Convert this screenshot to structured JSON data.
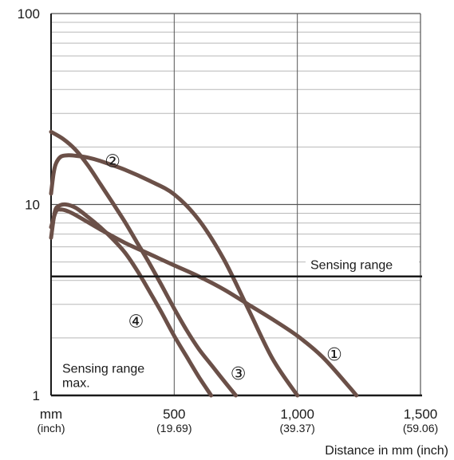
{
  "chart_data": {
    "type": "line",
    "y_scale": "log",
    "ylim": [
      1,
      100
    ],
    "xlim": [
      0,
      1500
    ],
    "grid": true,
    "x_ticks": [
      {
        "value": 0,
        "label": "mm",
        "sub": "(inch)"
      },
      {
        "value": 500,
        "label": "500",
        "sub": "(19.69)"
      },
      {
        "value": 1000,
        "label": "1,000",
        "sub": "(39.37)"
      },
      {
        "value": 1500,
        "label": "1,500",
        "sub": "(59.06)"
      }
    ],
    "y_ticks": [
      {
        "value": 1,
        "label": "1"
      },
      {
        "value": 10,
        "label": "10"
      },
      {
        "value": 100,
        "label": "100"
      }
    ],
    "xlabel": "Distance in mm (inch)",
    "ylabel": "",
    "line_color": "#6b5048",
    "sensing_range": {
      "label": "Sensing range",
      "value": 4.2
    },
    "annotations": [
      {
        "text": "Sensing range",
        "x": 5,
        "y": 1.38
      },
      {
        "text": "max.",
        "x": 5,
        "y": 1.16
      }
    ],
    "series": [
      {
        "label": "①",
        "x": [
          0,
          20,
          40,
          60,
          100,
          200,
          300,
          400,
          500,
          600,
          700,
          800,
          900,
          1000,
          1100,
          1200,
          1240
        ],
        "y": [
          7.6,
          9.2,
          9.4,
          9.3,
          8.8,
          7.4,
          6.3,
          5.5,
          4.8,
          4.2,
          3.6,
          3.0,
          2.5,
          2.05,
          1.6,
          1.15,
          1.0
        ]
      },
      {
        "label": "②",
        "x": [
          0,
          10,
          20,
          40,
          70,
          100,
          150,
          200,
          300,
          400,
          500,
          600,
          700,
          800,
          900,
          1000
        ],
        "y": [
          11.4,
          14.5,
          16.4,
          17.8,
          18.1,
          18.0,
          17.6,
          16.9,
          15.2,
          13.3,
          11.3,
          8.3,
          5.2,
          2.85,
          1.55,
          1.0
        ]
      },
      {
        "label": "③",
        "x": [
          0,
          50,
          100,
          150,
          200,
          250,
          300,
          350,
          400,
          450,
          500,
          550,
          600,
          650,
          700,
          750
        ],
        "y": [
          24.0,
          22.0,
          19.3,
          16.0,
          12.8,
          10.2,
          8.1,
          6.3,
          4.9,
          3.75,
          2.85,
          2.2,
          1.75,
          1.45,
          1.2,
          1.0
        ]
      },
      {
        "label": "④",
        "x": [
          0,
          15,
          30,
          60,
          100,
          150,
          200,
          250,
          300,
          350,
          400,
          450,
          500,
          550,
          600,
          650
        ],
        "y": [
          6.7,
          9.1,
          9.8,
          10.0,
          9.6,
          8.6,
          7.6,
          6.6,
          5.6,
          4.5,
          3.5,
          2.7,
          2.05,
          1.6,
          1.25,
          1.0
        ]
      }
    ],
    "series_labels": [
      {
        "label": "①",
        "x": 1150,
        "y": 1.65
      },
      {
        "label": "②",
        "x": 250,
        "y": 17.0
      },
      {
        "label": "③",
        "x": 760,
        "y": 1.31
      },
      {
        "label": "④",
        "x": 345,
        "y": 2.46
      }
    ]
  }
}
